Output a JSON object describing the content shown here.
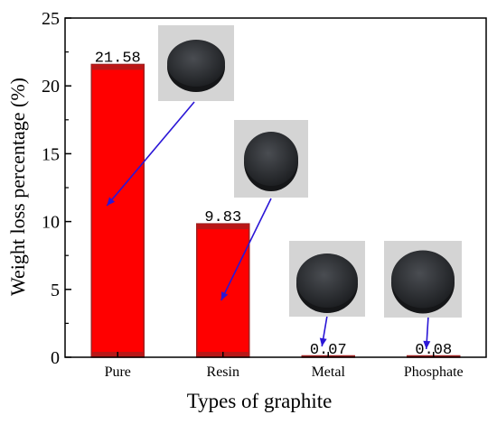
{
  "chart_data": {
    "type": "bar",
    "categories": [
      "Pure",
      "Resin",
      "Metal",
      "Phosphate"
    ],
    "values": [
      21.58,
      9.83,
      0.07,
      0.08
    ],
    "data_labels": [
      "21.58",
      "9.83",
      "0.07",
      "0.08"
    ],
    "title": "",
    "xlabel": "Types of graphite",
    "ylabel": "Weight loss percentage (%)",
    "ylim": [
      0,
      25
    ],
    "yticks": [
      "0",
      "5",
      "10",
      "15",
      "20",
      "25"
    ],
    "grid": false,
    "legend": "none",
    "bar_color": "#ff0000",
    "bar_edge_color": "#a02020",
    "arrow_color": "#2a16d6",
    "annotations": [
      {
        "name": "pure-sample-photo",
        "points_to": "Pure"
      },
      {
        "name": "resin-sample-photo",
        "points_to": "Resin"
      },
      {
        "name": "metal-sample-photo",
        "points_to": "Metal"
      },
      {
        "name": "phosphate-sample-photo",
        "points_to": "Phosphate"
      }
    ]
  }
}
